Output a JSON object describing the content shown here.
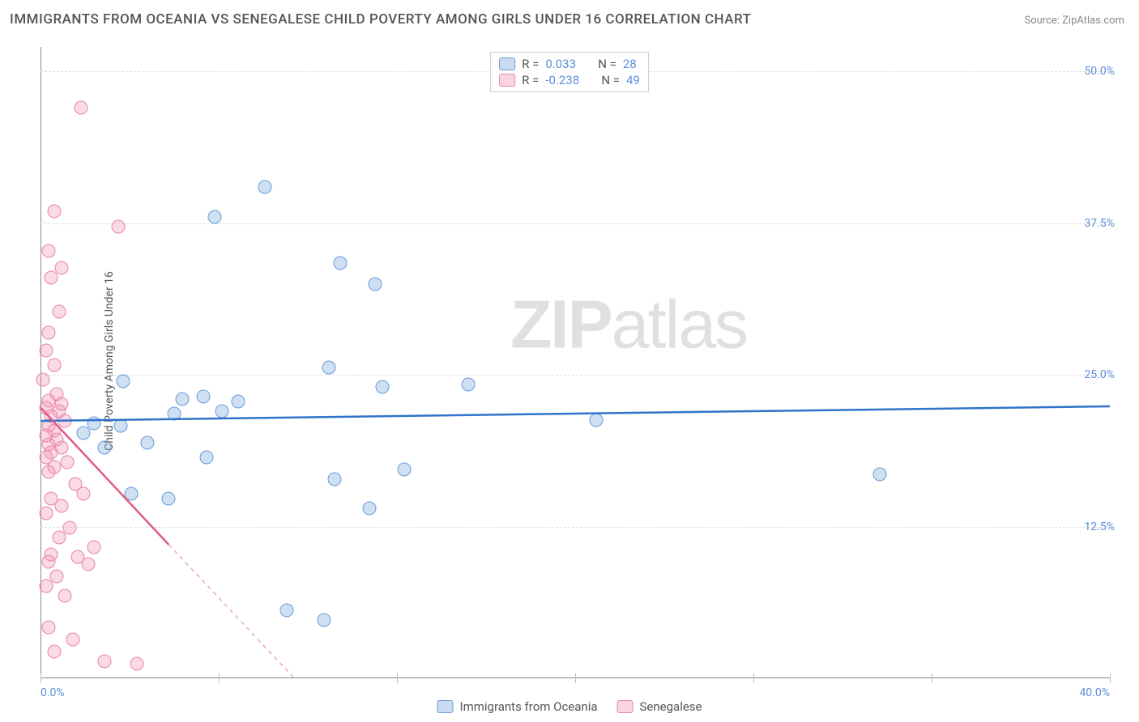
{
  "title": "IMMIGRANTS FROM OCEANIA VS SENEGALESE CHILD POVERTY AMONG GIRLS UNDER 16 CORRELATION CHART",
  "source": "Source: ZipAtlas.com",
  "ylabel": "Child Poverty Among Girls Under 16",
  "watermark": {
    "bold": "ZIP",
    "light": "atlas"
  },
  "chart": {
    "type": "scatter",
    "xlim": [
      0,
      40
    ],
    "ylim": [
      0,
      52
    ],
    "xtick_positions": [
      0,
      6.67,
      13.33,
      20,
      26.67,
      33.33,
      40
    ],
    "xtick_labels": [
      "0.0%",
      "",
      "",
      "",
      "",
      "",
      "40.0%"
    ],
    "ytick_positions": [
      12.5,
      25,
      37.5,
      50
    ],
    "ytick_labels": [
      "12.5%",
      "25.0%",
      "37.5%",
      "50.0%"
    ],
    "grid_color": "#dddddd",
    "axis_color": "#888888",
    "background_color": "#ffffff",
    "text_color": "#555555",
    "tick_label_color": "#5b8fd8",
    "marker_radius": 8.5,
    "series": [
      {
        "name": "Immigrants from Oceania",
        "color_fill": "rgba(120,165,220,0.35)",
        "color_stroke": "#6a9bd8",
        "r_value": "0.033",
        "n_value": "28",
        "trend": {
          "x1": 0,
          "y1": 21.2,
          "x2": 40,
          "y2": 22.4,
          "color": "#2f74c8",
          "width": 2.5,
          "dash": "solid",
          "extrap_dash": false
        },
        "points": [
          [
            8.4,
            40.5
          ],
          [
            6.5,
            38.0
          ],
          [
            11.2,
            34.2
          ],
          [
            12.5,
            32.5
          ],
          [
            10.8,
            25.6
          ],
          [
            3.1,
            24.5
          ],
          [
            5.3,
            23.0
          ],
          [
            6.1,
            23.2
          ],
          [
            7.4,
            22.8
          ],
          [
            5.0,
            21.8
          ],
          [
            2.0,
            21.0
          ],
          [
            3.0,
            20.8
          ],
          [
            1.6,
            20.2
          ],
          [
            4.0,
            19.4
          ],
          [
            6.2,
            18.2
          ],
          [
            3.4,
            15.2
          ],
          [
            4.8,
            14.8
          ],
          [
            12.3,
            14.0
          ],
          [
            13.6,
            17.2
          ],
          [
            16.0,
            24.2
          ],
          [
            20.8,
            21.3
          ],
          [
            31.4,
            16.8
          ],
          [
            11.0,
            16.4
          ],
          [
            9.2,
            5.6
          ],
          [
            10.6,
            4.8
          ],
          [
            12.8,
            24.0
          ],
          [
            2.4,
            19.0
          ],
          [
            6.8,
            22.0
          ]
        ]
      },
      {
        "name": "Senegalese",
        "color_fill": "rgba(240,150,180,0.35)",
        "color_stroke": "#e884a8",
        "r_value": "-0.238",
        "n_value": "49",
        "trend": {
          "x1": 0,
          "y1": 22.3,
          "x2": 4.8,
          "y2": 11.0,
          "color": "#e05a86",
          "width": 2.5,
          "dash": "solid",
          "extrap_x2": 9.5,
          "extrap_y2": 0,
          "extrap_color": "#e8a8bc"
        },
        "points": [
          [
            1.5,
            47.0
          ],
          [
            0.5,
            38.5
          ],
          [
            2.9,
            37.2
          ],
          [
            0.3,
            35.2
          ],
          [
            0.8,
            33.8
          ],
          [
            0.4,
            33.0
          ],
          [
            0.7,
            30.2
          ],
          [
            0.3,
            28.5
          ],
          [
            0.2,
            27.0
          ],
          [
            0.5,
            25.8
          ],
          [
            0.1,
            24.6
          ],
          [
            0.6,
            23.4
          ],
          [
            0.3,
            22.9
          ],
          [
            0.2,
            22.3
          ],
          [
            0.7,
            22.0
          ],
          [
            0.4,
            21.6
          ],
          [
            0.9,
            21.2
          ],
          [
            0.3,
            20.8
          ],
          [
            0.5,
            20.4
          ],
          [
            0.2,
            20.0
          ],
          [
            0.6,
            19.7
          ],
          [
            0.3,
            19.3
          ],
          [
            0.8,
            19.0
          ],
          [
            0.4,
            18.6
          ],
          [
            0.2,
            18.2
          ],
          [
            1.0,
            17.8
          ],
          [
            0.5,
            17.4
          ],
          [
            0.3,
            17.0
          ],
          [
            1.3,
            16.0
          ],
          [
            1.6,
            15.2
          ],
          [
            0.4,
            14.8
          ],
          [
            0.8,
            14.2
          ],
          [
            0.2,
            13.6
          ],
          [
            1.1,
            12.4
          ],
          [
            0.7,
            11.6
          ],
          [
            2.0,
            10.8
          ],
          [
            0.4,
            10.2
          ],
          [
            1.4,
            10.0
          ],
          [
            0.3,
            9.6
          ],
          [
            1.8,
            9.4
          ],
          [
            0.6,
            8.4
          ],
          [
            0.2,
            7.6
          ],
          [
            0.9,
            6.8
          ],
          [
            0.3,
            4.2
          ],
          [
            1.2,
            3.2
          ],
          [
            0.5,
            2.2
          ],
          [
            2.4,
            1.4
          ],
          [
            3.6,
            1.2
          ],
          [
            0.8,
            22.6
          ]
        ]
      }
    ]
  },
  "legend_top": {
    "rows": [
      {
        "swatch": "blue",
        "r_label": "R =",
        "r": "0.033",
        "spacer": "   ",
        "n_label": "N =",
        "n": "28"
      },
      {
        "swatch": "pink",
        "r_label": "R =",
        "r": "-0.238",
        "spacer": "   ",
        "n_label": "N =",
        "n": "49"
      }
    ]
  },
  "legend_bottom": {
    "items": [
      {
        "swatch": "blue",
        "label": "Immigrants from Oceania"
      },
      {
        "swatch": "pink",
        "label": "Senegalese"
      }
    ]
  }
}
